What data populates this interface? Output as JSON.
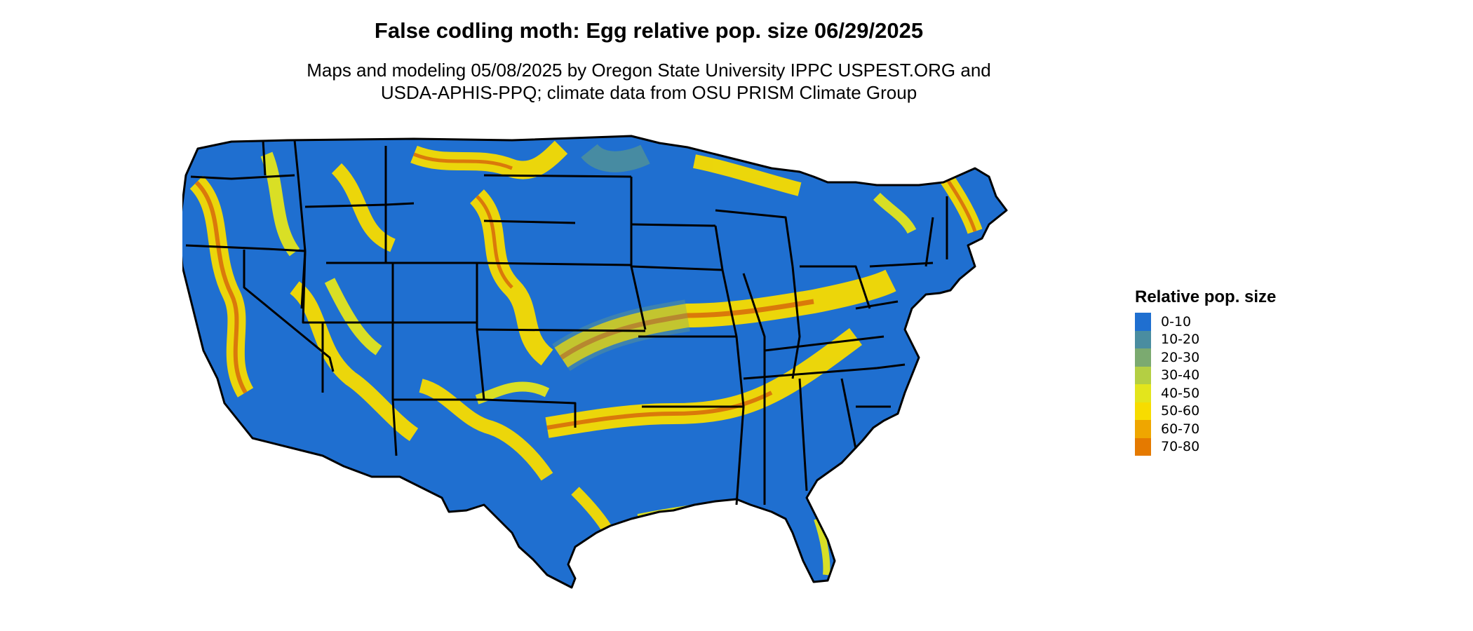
{
  "title": "False codling moth: Egg relative pop. size 06/29/2025",
  "subtitle_line1": "Maps and modeling 05/08/2025 by Oregon State University IPPC USPEST.ORG and",
  "subtitle_line2": "USDA-APHIS-PPQ; climate data from OSU PRISM Climate Group",
  "legend": {
    "title": "Relative pop. size",
    "items": [
      {
        "label": "0-10",
        "color": "#1f6fd0"
      },
      {
        "label": "10-20",
        "color": "#4a8da0"
      },
      {
        "label": "20-30",
        "color": "#7baa70"
      },
      {
        "label": "30-40",
        "color": "#b4cf43"
      },
      {
        "label": "40-50",
        "color": "#e3e51c"
      },
      {
        "label": "50-60",
        "color": "#f7dc00"
      },
      {
        "label": "60-70",
        "color": "#efa600"
      },
      {
        "label": "70-80",
        "color": "#e57a00"
      }
    ]
  },
  "map": {
    "region": "contiguous-united-states",
    "background_color": "#1f6fd0",
    "boundary_color": "#000000"
  }
}
